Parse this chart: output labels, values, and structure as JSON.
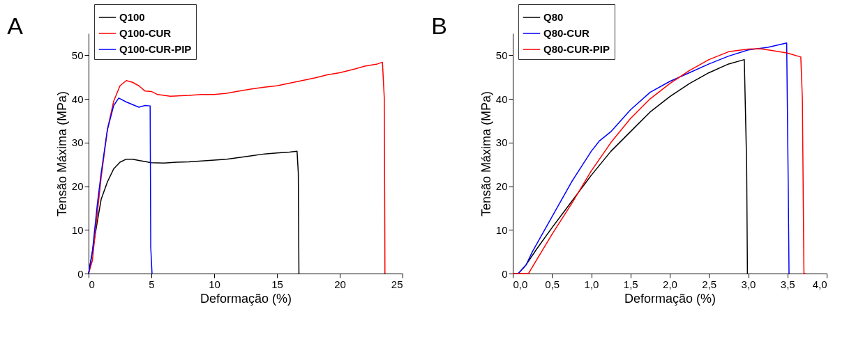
{
  "chart_data": [
    {
      "type": "line",
      "title": "A",
      "xlabel": "Deformação (%)",
      "ylabel": "Tensão Máxima (MPa)",
      "xlim": [
        0,
        25
      ],
      "xticks": [
        0,
        5,
        10,
        15,
        20,
        25
      ],
      "ylim": [
        0,
        55
      ],
      "yticks": [
        0,
        10,
        20,
        30,
        40,
        50
      ],
      "grid": false,
      "legend": "top left",
      "series": [
        {
          "name": "Q100",
          "color": "#000000",
          "x": [
            0,
            0.3,
            0.7,
            1,
            1.5,
            2,
            2.5,
            3,
            3.5,
            4,
            5,
            6,
            7,
            8,
            9,
            10,
            11,
            12,
            13,
            14,
            15,
            16,
            16.6,
            16.7,
            16.75
          ],
          "values": [
            0,
            5,
            12,
            17,
            21,
            24,
            25.5,
            26.2,
            26.2,
            25.9,
            25.4,
            25.3,
            25.5,
            25.6,
            25.8,
            26,
            26.2,
            26.6,
            27,
            27.4,
            27.6,
            27.8,
            28,
            23,
            0
          ]
        },
        {
          "name": "Q100-CUR",
          "color": "#ff0000",
          "x": [
            0,
            0.3,
            0.7,
            1,
            1.5,
            2,
            2.5,
            3,
            3.5,
            4,
            4.5,
            5,
            5.5,
            6.5,
            8,
            9,
            10,
            11,
            12,
            13,
            14,
            15,
            16,
            17,
            18,
            19,
            20,
            21,
            22,
            23,
            23.4,
            23.55,
            23.6
          ],
          "values": [
            0,
            3,
            14,
            22,
            33,
            39.5,
            43,
            44.2,
            43.8,
            43,
            41.8,
            41.7,
            41,
            40.6,
            40.8,
            41,
            41,
            41.3,
            41.8,
            42.3,
            42.7,
            43,
            43.6,
            44.2,
            44.8,
            45.5,
            46,
            46.7,
            47.5,
            48,
            48.4,
            40,
            0
          ]
        },
        {
          "name": "Q100-CUR-PIP",
          "color": "#0000ff",
          "x": [
            0,
            0.3,
            0.7,
            1,
            1.5,
            2,
            2.4,
            3,
            3.5,
            4,
            4.5,
            4.9,
            4.95,
            5.05
          ],
          "values": [
            0,
            5,
            16,
            23,
            33,
            38.5,
            40.2,
            39.3,
            38.7,
            38.1,
            38.5,
            38.4,
            6,
            0
          ]
        }
      ]
    },
    {
      "type": "line",
      "title": "B",
      "xlabel": "Deformação (%)",
      "ylabel": "Tensão Máxima (MPa)",
      "xlim": [
        0,
        4
      ],
      "xticks": [
        {
          "value": 0,
          "label": "0,0"
        },
        {
          "value": 0.5,
          "label": "0,5"
        },
        {
          "value": 1,
          "label": "1,0"
        },
        {
          "value": 1.5,
          "label": "1,5"
        },
        {
          "value": 2,
          "label": "2,0"
        },
        {
          "value": 2.5,
          "label": "2,5"
        },
        {
          "value": 3,
          "label": "3,0"
        },
        {
          "value": 3.5,
          "label": "3,5"
        },
        {
          "value": 4,
          "label": "4,0"
        }
      ],
      "ylim": [
        0,
        55
      ],
      "yticks": [
        0,
        10,
        20,
        30,
        40,
        50
      ],
      "grid": false,
      "legend": "top left",
      "series": [
        {
          "name": "Q80",
          "color": "#000000",
          "x": [
            0,
            0.07,
            0.17,
            0.3,
            0.5,
            0.75,
            1,
            1.25,
            1.5,
            1.75,
            2,
            2.25,
            2.5,
            2.75,
            2.95,
            2.98,
            2.99
          ],
          "values": [
            0,
            0,
            2,
            5.5,
            10.5,
            16.5,
            22.5,
            28,
            32.5,
            37,
            40.5,
            43.5,
            46,
            48,
            49,
            25,
            0
          ]
        },
        {
          "name": "Q80-CUR",
          "color": "#0000ff",
          "x": [
            0,
            0.07,
            0.17,
            0.25,
            0.5,
            0.75,
            1,
            1.1,
            1.25,
            1.5,
            1.75,
            2,
            2.25,
            2.5,
            2.75,
            3,
            3.25,
            3.49,
            3.51,
            3.52
          ],
          "values": [
            0,
            0,
            2,
            5,
            13,
            21,
            28,
            30.3,
            32.5,
            37.5,
            41.5,
            44,
            46,
            48,
            49.8,
            51.2,
            51.8,
            52.8,
            20,
            0
          ]
        },
        {
          "name": "Q80-CUR-PIP",
          "color": "#ff0000",
          "x": [
            0,
            0.2,
            0.3,
            0.5,
            0.75,
            1,
            1.25,
            1.5,
            1.75,
            2,
            2.25,
            2.5,
            2.75,
            3,
            3.15,
            3.3,
            3.5,
            3.67,
            3.69,
            3.71,
            3.73
          ],
          "values": [
            0,
            0,
            3,
            9,
            16,
            23.5,
            30,
            35.5,
            40,
            43.5,
            46.5,
            49,
            50.8,
            51.4,
            51.5,
            51.1,
            50.5,
            49.6,
            40,
            0,
            0
          ]
        }
      ]
    }
  ]
}
